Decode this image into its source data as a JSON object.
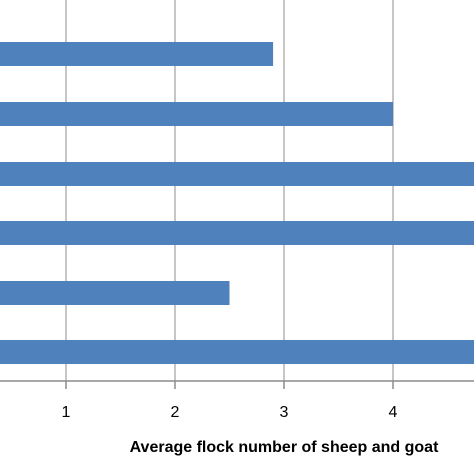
{
  "chart_data": {
    "type": "bar",
    "orientation": "horizontal",
    "categories": [
      "",
      "",
      "",
      "",
      "",
      ""
    ],
    "values": [
      2.9,
      4.0,
      4.9,
      4.9,
      2.5,
      4.9
    ],
    "xlabel": "Average flock number of sheep and goat",
    "ylabel": "",
    "x_ticks": [
      "1",
      "2",
      "3",
      "4"
    ],
    "xlim": [
      0.4,
      4.75
    ],
    "grid": "vertical",
    "legend": "none",
    "colors": {
      "bar": "#4F81BD",
      "grid": "#8C8C8C",
      "axis": "#8C8C8C",
      "text": "#000000"
    }
  }
}
